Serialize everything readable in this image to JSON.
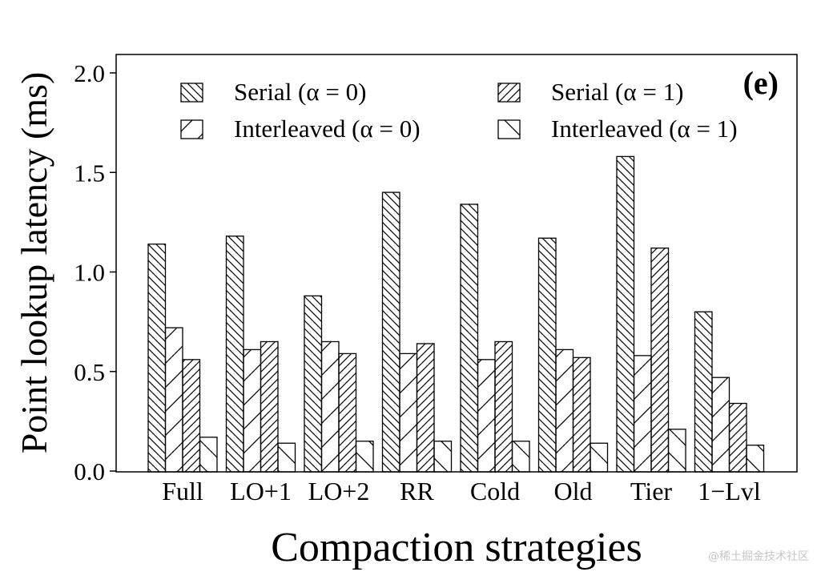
{
  "chart_data": {
    "type": "bar",
    "panel_label": "(e)",
    "xlabel": "Compaction strategies",
    "ylabel": "Point lookup latency (ms)",
    "ylim": [
      0,
      2.0
    ],
    "yticks": [
      "0.0",
      "0.5",
      "1.0",
      "1.5",
      "2.0"
    ],
    "categories": [
      "Full",
      "LO+1",
      "LO+2",
      "RR",
      "Cold",
      "Old",
      "Tier",
      "1−Lvl"
    ],
    "legend_position": "top",
    "series": [
      {
        "name": "Serial (α = 0)",
        "pattern": "back",
        "values": [
          1.14,
          1.18,
          0.88,
          1.4,
          1.34,
          1.17,
          1.58,
          0.8
        ]
      },
      {
        "name": "Interleaved (α = 0)",
        "pattern": "fwd-sparse",
        "values": [
          0.72,
          0.61,
          0.65,
          0.59,
          0.56,
          0.61,
          0.58,
          0.47
        ]
      },
      {
        "name": "Serial (α = 1)",
        "pattern": "fwd",
        "values": [
          0.56,
          0.65,
          0.59,
          0.64,
          0.65,
          0.57,
          1.12,
          0.34
        ]
      },
      {
        "name": "Interleaved (α = 1)",
        "pattern": "back-sparse",
        "values": [
          0.17,
          0.14,
          0.15,
          0.15,
          0.15,
          0.14,
          0.21,
          0.13
        ]
      }
    ]
  },
  "watermark": "@稀土掘金技术社区"
}
